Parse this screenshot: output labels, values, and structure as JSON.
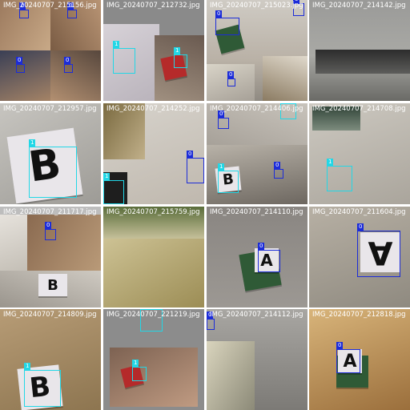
{
  "mosaic": {
    "colors": {
      "class0": "#1c2cd8",
      "class1": "#22d7e6"
    },
    "tiles": [
      {
        "filename": "IMG_20240707_215156.jpg",
        "boxes": [
          {
            "label": "0"
          },
          {
            "label": "0"
          },
          {
            "label": "0"
          },
          {
            "label": "0"
          }
        ]
      },
      {
        "filename": "IMG_20240707_212732.jpg",
        "boxes": [
          {
            "label": "1"
          },
          {
            "label": "1"
          }
        ]
      },
      {
        "filename": "IMG_20240707_215023.jpg",
        "boxes": [
          {
            "label": "0"
          },
          {
            "label": "0"
          },
          {
            "label": "0"
          }
        ]
      },
      {
        "filename": "IMG_20240707_214142.jpg",
        "boxes": []
      },
      {
        "filename": "IMG_20240707_212957.jpg",
        "boxes": [
          {
            "label": "1"
          }
        ]
      },
      {
        "filename": "IMG_20240707_214252.jpg",
        "boxes": [
          {
            "label": "0"
          },
          {
            "label": "1"
          }
        ]
      },
      {
        "filename": "IMG_20240707_214406.jpg",
        "boxes": [
          {
            "label": "1"
          },
          {
            "label": "0"
          },
          {
            "label": "1"
          },
          {
            "label": "0"
          }
        ]
      },
      {
        "filename": "IMG_20240707_214708.jpg",
        "boxes": [
          {
            "label": "1"
          }
        ]
      },
      {
        "filename": "IMG_20240707_211717.jpg",
        "boxes": [
          {
            "label": "0"
          }
        ]
      },
      {
        "filename": "IMG_20240707_215759.jpg",
        "boxes": []
      },
      {
        "filename": "IMG_20240707_214110.jpg",
        "boxes": [
          {
            "label": "0"
          }
        ]
      },
      {
        "filename": "IMG_20240707_211604.jpg",
        "boxes": [
          {
            "label": "0"
          }
        ]
      },
      {
        "filename": "IMG_20240707_214809.jpg",
        "boxes": [
          {
            "label": "1"
          }
        ]
      },
      {
        "filename": "IMG_20240707_221219.jpg",
        "boxes": [
          {
            "label": "1"
          },
          {
            "label": "1"
          }
        ]
      },
      {
        "filename": "IMG_20240707_214112.jpg",
        "boxes": [
          {
            "label": "0"
          }
        ]
      },
      {
        "filename": "IMG_20240707_212818.jpg",
        "boxes": [
          {
            "label": "0"
          }
        ]
      }
    ],
    "block_letters": {
      "a": "A",
      "b": "B"
    }
  }
}
